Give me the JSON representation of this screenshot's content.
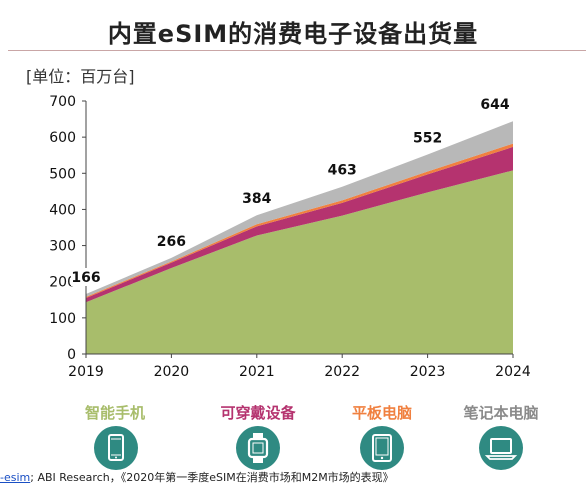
{
  "header": {
    "title": "内置eSIM的消费电子设备出货量",
    "unit": "[单位：百万台]"
  },
  "chart_data": {
    "type": "area",
    "stacked": true,
    "title": "内置eSIM的消费电子设备出货量",
    "ylabel": "[单位：百万台]",
    "xlabel": "",
    "x": [
      "2019",
      "2020",
      "2021",
      "2022",
      "2023",
      "2024"
    ],
    "ylim": [
      0,
      700
    ],
    "yticks": [
      0,
      100,
      200,
      300,
      400,
      500,
      600,
      700
    ],
    "grid": false,
    "legend_position": "bottom",
    "series": [
      {
        "name": "智能手机",
        "color": "#a8bd6b",
        "values": [
          143,
          238,
          328,
          383,
          447,
          508
        ]
      },
      {
        "name": "可穿戴设备",
        "color": "#b5336f",
        "values": [
          12,
          15,
          25,
          35,
          50,
          65
        ]
      },
      {
        "name": "平板电脑",
        "color": "#f08040",
        "values": [
          3,
          3,
          6,
          7,
          8,
          9
        ]
      },
      {
        "name": "笔记本电脑",
        "color": "#b8b8b8",
        "values": [
          8,
          10,
          25,
          38,
          47,
          62
        ]
      }
    ],
    "totals": [
      166,
      266,
      384,
      463,
      552,
      644
    ]
  },
  "legend": [
    {
      "label": "智能手机",
      "color": "#a8bd6b",
      "icon": "smartphone-icon"
    },
    {
      "label": "可穿戴设备",
      "color": "#b5336f",
      "icon": "smartwatch-icon"
    },
    {
      "label": "平板电脑",
      "color": "#f08040",
      "icon": "tablet-icon"
    },
    {
      "label": "笔记本电脑",
      "color": "#8a8a8a",
      "icon": "laptop-icon"
    }
  ],
  "icon_color": "#2f8a82",
  "footer": {
    "link_text": "-esim",
    "text": "; ABI Research，《2020年第一季度eSIM在消费市场和M2M市场的表现》"
  }
}
